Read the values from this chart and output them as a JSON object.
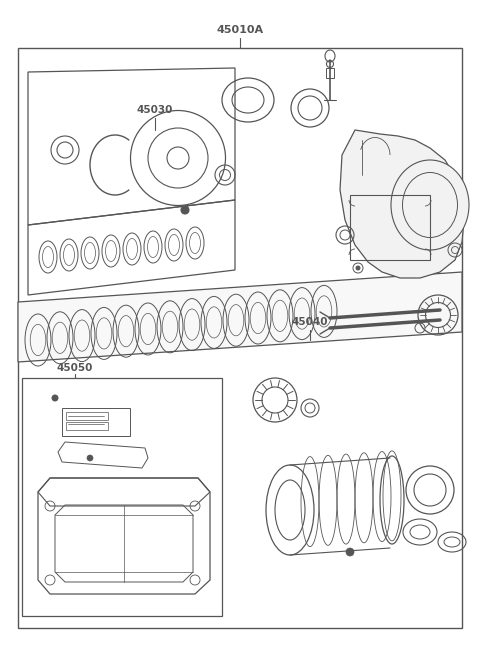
{
  "bg_color": "#ffffff",
  "line_color": "#555555",
  "label_45010A": "45010A",
  "label_45030": "45030",
  "label_45040": "45040",
  "label_45050": "45050",
  "figsize": [
    4.8,
    6.55
  ],
  "dpi": 100
}
